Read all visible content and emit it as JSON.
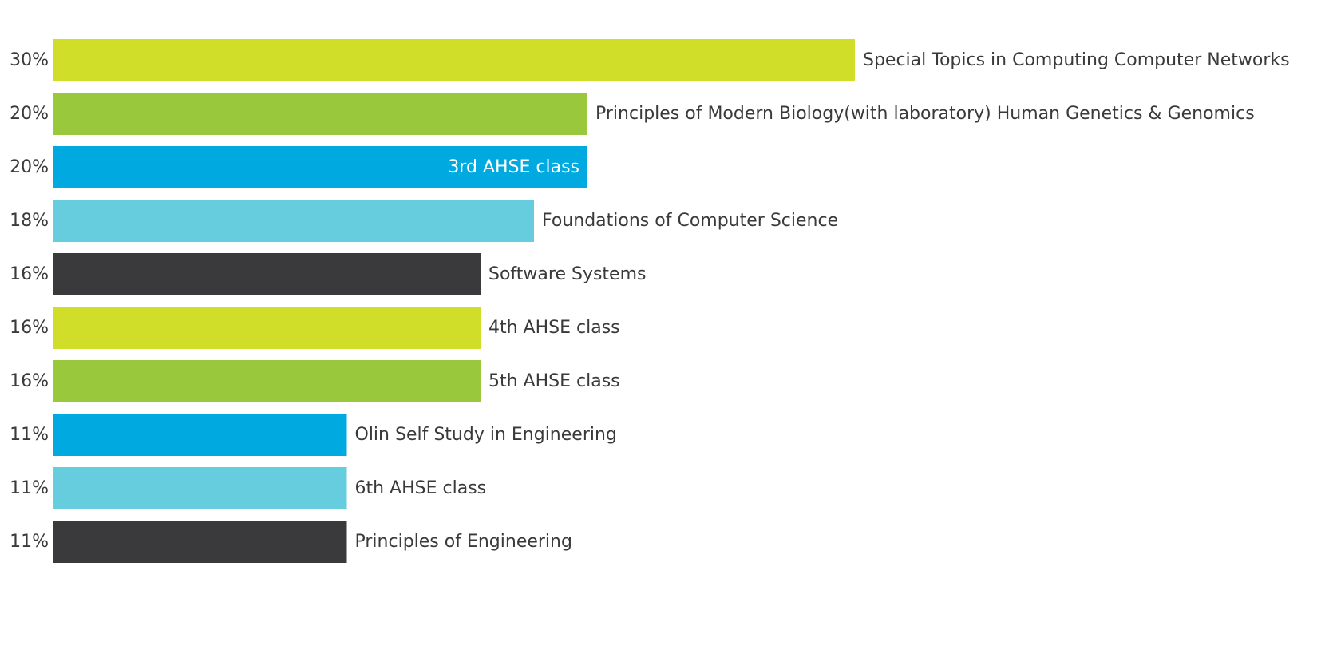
{
  "chart_data": {
    "type": "bar",
    "orientation": "horizontal",
    "title": "",
    "xlabel": "",
    "ylabel": "",
    "xlim": [
      0,
      50
    ],
    "grid": false,
    "legend": "none",
    "categories": [
      "Special Topics in Computing Computer Networks",
      "Principles of Modern Biology(with laboratory) Human Genetics & Genomics",
      "3rd AHSE class",
      "Foundations of Computer Science",
      "Software Systems",
      "4th AHSE class",
      "5th AHSE class",
      "Olin Self Study in Engineering",
      "6th AHSE class",
      "Principles of Engineering"
    ],
    "values": [
      30,
      20,
      20,
      18,
      16,
      16,
      16,
      11,
      11,
      11
    ],
    "value_labels": [
      "30%",
      "20%",
      "20%",
      "18%",
      "16%",
      "16%",
      "16%",
      "11%",
      "11%",
      "11%"
    ],
    "colors": [
      "#d0de2a",
      "#99c83c",
      "#00aae0",
      "#66cdde",
      "#3a3a3c",
      "#d0de2a",
      "#99c83c",
      "#00aae0",
      "#66cdde",
      "#3a3a3c"
    ],
    "inside_label_index": 2,
    "label_color": "#3a3a3c",
    "inside_label_color": "#ffffff"
  }
}
